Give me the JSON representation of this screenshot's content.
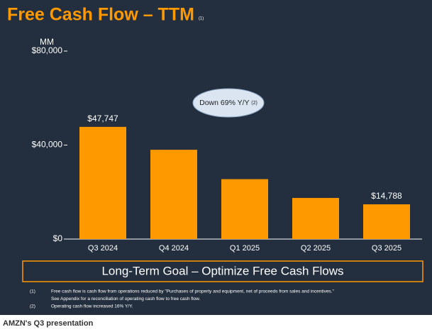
{
  "chart_data": {
    "type": "bar",
    "title": "Free Cash Flow – TTM",
    "title_note": "(1)",
    "y_unit": "MM",
    "categories": [
      "Q3 2024",
      "Q4 2024",
      "Q1 2025",
      "Q2 2025",
      "Q3 2025"
    ],
    "values": [
      47747,
      38000,
      25500,
      17500,
      14788
    ],
    "value_labels": [
      "$47,747",
      null,
      null,
      null,
      "$14,788"
    ],
    "color": "#ff9900",
    "ylim": [
      0,
      80000
    ],
    "yticks": [
      {
        "value": 0,
        "label": "$0"
      },
      {
        "value": 40000,
        "label": "$40,000"
      },
      {
        "value": 80000,
        "label": "$80,000"
      }
    ],
    "annotation": {
      "text": "Down 69% Y/Y",
      "note": "(2)"
    },
    "banner": "Long-Term Goal – Optimize Free Cash Flows",
    "footnotes": [
      {
        "marker": "(1)",
        "lines": [
          "Free cash flow is cash flow from operations reduced by \"Purchases of property and equipment, net of proceeds from sales and incentives.\"",
          "See Appendix for a reconciliation of operating cash flow to free cash flow."
        ]
      },
      {
        "marker": "(2)",
        "lines": [
          "Operating cash flow increased 16% Y/Y."
        ]
      }
    ]
  },
  "caption": "AMZN's Q3 presentation"
}
